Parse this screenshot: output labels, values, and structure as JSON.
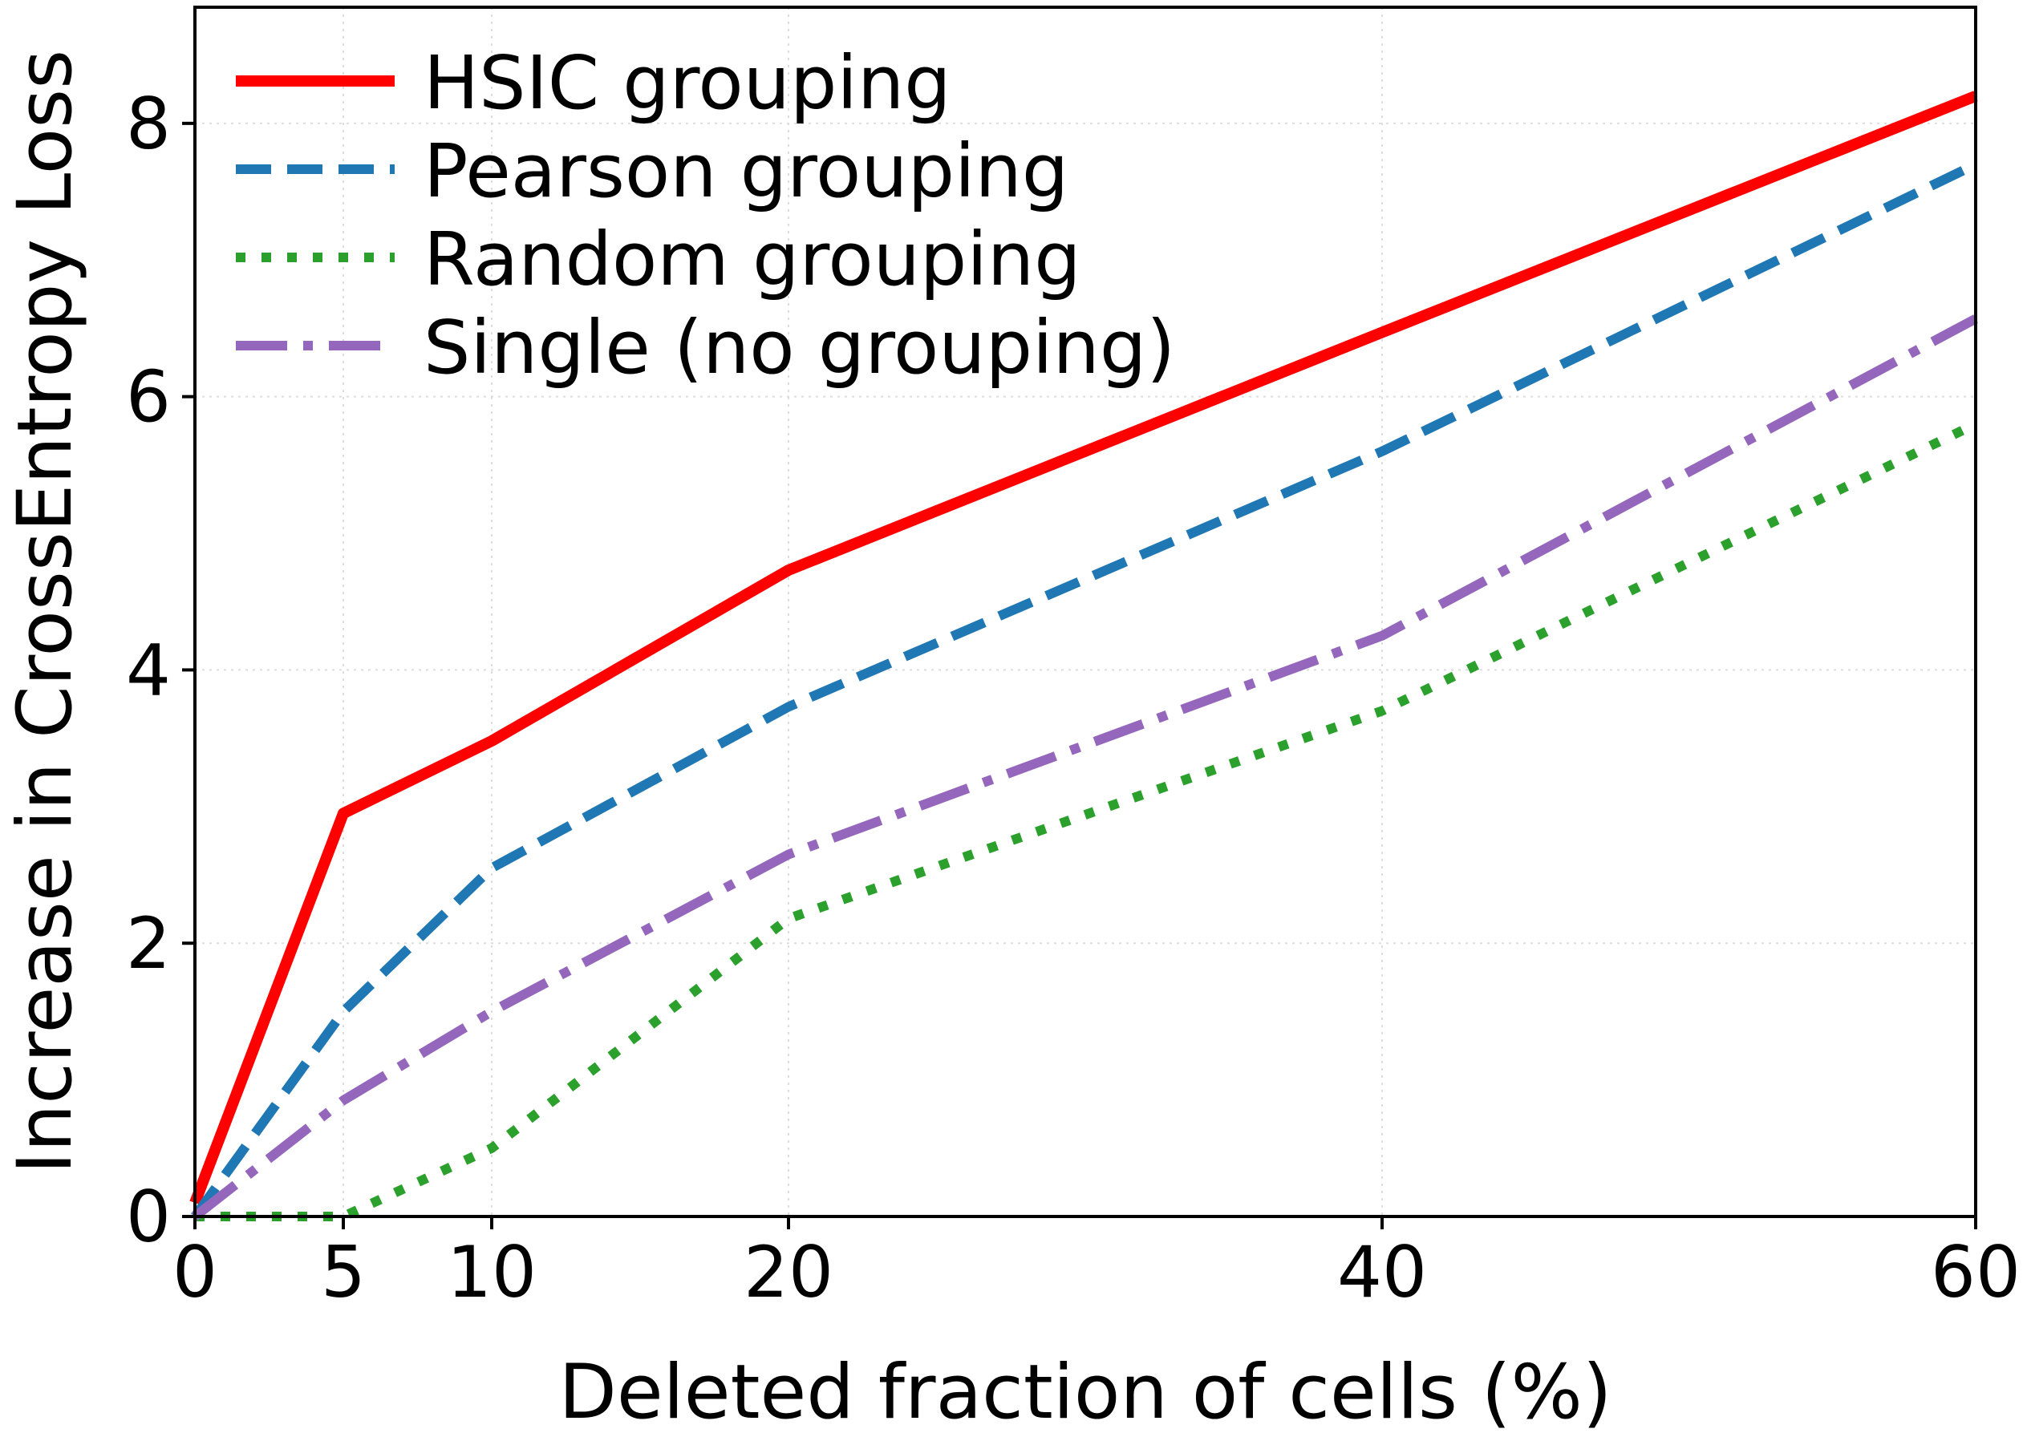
{
  "chart_data": {
    "type": "line",
    "title": "",
    "xlabel": "Deleted fraction of cells (%)",
    "ylabel": "Increase in CrossEntropy Loss",
    "xlim": [
      0,
      60
    ],
    "ylim": [
      0,
      8.85
    ],
    "x": [
      0,
      5,
      10,
      20,
      40,
      60
    ],
    "xticks": [
      0,
      5,
      10,
      20,
      40,
      60
    ],
    "xtick_labels": [
      "0",
      "5",
      "10",
      "20",
      "40",
      "60"
    ],
    "yticks": [
      0,
      2,
      4,
      6,
      8
    ],
    "ytick_labels": [
      "0",
      "2",
      "4",
      "6",
      "8"
    ],
    "grid": true,
    "legend_position": "top-left",
    "series": [
      {
        "name": "HSIC grouping",
        "values": [
          0.1,
          2.95,
          3.48,
          4.73,
          6.47,
          8.2
        ],
        "color": "#ff0000",
        "style": "solid"
      },
      {
        "name": "Pearson grouping",
        "values": [
          0.0,
          1.5,
          2.55,
          3.73,
          5.6,
          7.7
        ],
        "color": "#1f77b4",
        "style": "dashed"
      },
      {
        "name": "Random grouping",
        "values": [
          0.0,
          0.0,
          0.5,
          2.18,
          3.7,
          5.8
        ],
        "color": "#2ca02c",
        "style": "dotted"
      },
      {
        "name": "Single (no grouping)",
        "values": [
          0.0,
          0.85,
          1.5,
          2.65,
          4.25,
          6.57
        ],
        "color": "#9467bd",
        "style": "dashdot"
      }
    ]
  }
}
